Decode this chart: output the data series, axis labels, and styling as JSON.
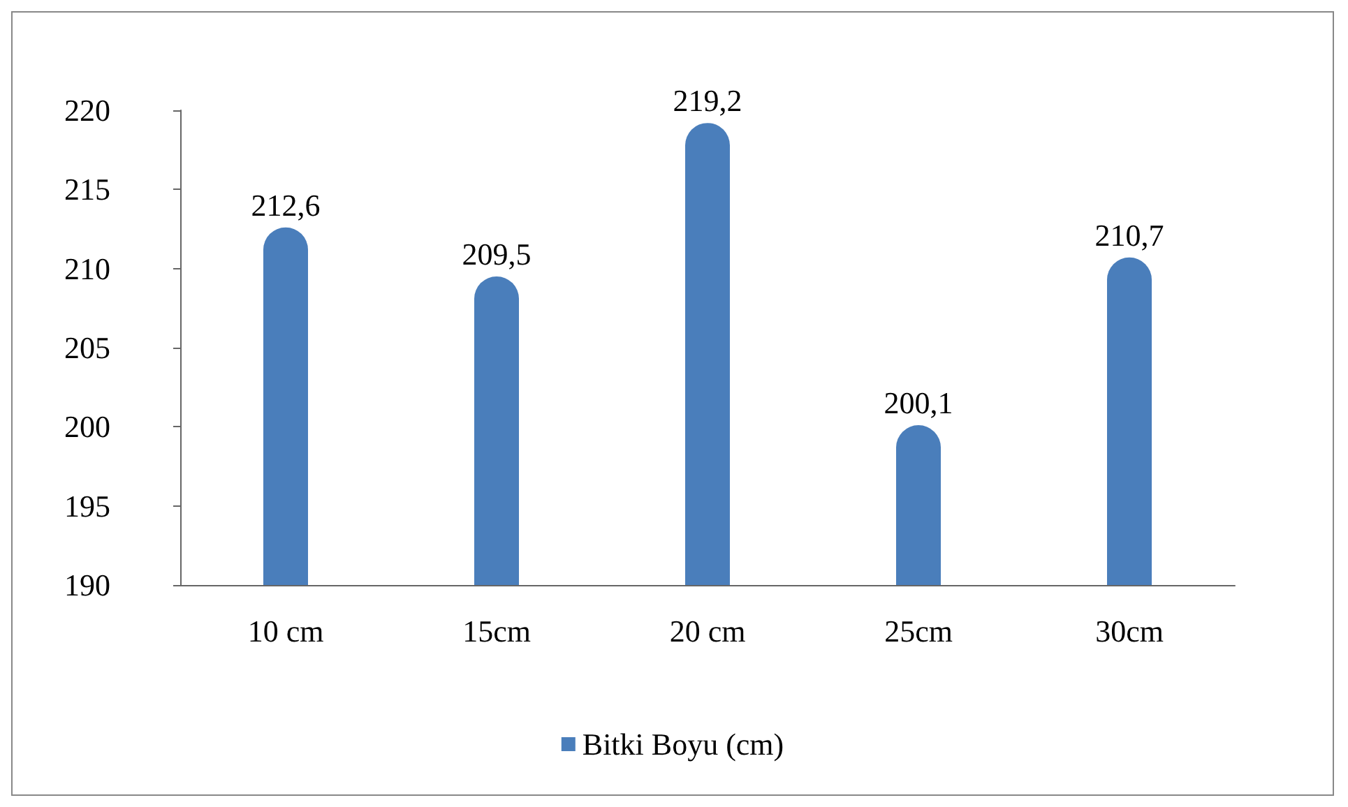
{
  "chart_data": {
    "type": "bar",
    "categories": [
      "10 cm",
      "15cm",
      "20 cm",
      "25cm",
      "30cm"
    ],
    "series": [
      {
        "name": "Bitki Boyu (cm)",
        "color": "#4a7ebb",
        "values": [
          212.6,
          209.5,
          219.2,
          200.1,
          210.7
        ],
        "value_labels": [
          "212,6",
          "209,5",
          "219,2",
          "200,1",
          "210,7"
        ]
      }
    ],
    "ylim": [
      190,
      220
    ],
    "yticks": [
      190,
      195,
      200,
      205,
      210,
      215,
      220
    ],
    "grid": false,
    "legend": "bottom"
  }
}
